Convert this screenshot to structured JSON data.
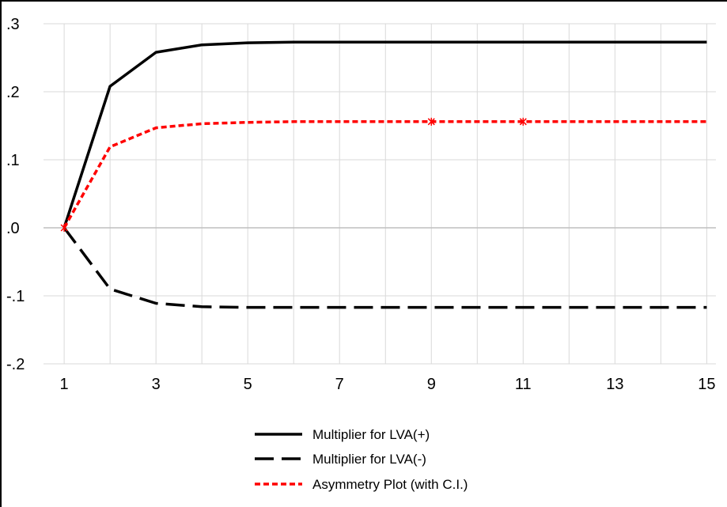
{
  "chart_data": {
    "type": "line",
    "x": [
      1,
      2,
      3,
      4,
      5,
      6,
      7,
      8,
      9,
      10,
      11,
      12,
      13,
      14,
      15
    ],
    "xticks": [
      "1",
      "3",
      "5",
      "7",
      "9",
      "11",
      "13",
      "15"
    ],
    "xtick_values": [
      1,
      3,
      5,
      7,
      9,
      11,
      13,
      15
    ],
    "xlim": [
      0.55,
      15.2
    ],
    "ylim": [
      -0.2,
      0.3
    ],
    "yticks": [
      ".3",
      ".2",
      ".1",
      ".0",
      "-.1",
      "-.2"
    ],
    "ytick_values": [
      0.3,
      0.2,
      0.1,
      0.0,
      -0.1,
      -0.2
    ],
    "grid": true,
    "legend_position": "bottom",
    "series": [
      {
        "name": "Multiplier for LVA(+)",
        "style": "solid",
        "color": "#000000",
        "values": [
          0.0,
          0.208,
          0.258,
          0.269,
          0.272,
          0.273,
          0.273,
          0.273,
          0.273,
          0.273,
          0.273,
          0.273,
          0.273,
          0.273,
          0.273
        ]
      },
      {
        "name": "Multiplier for LVA(-)",
        "style": "long-dash",
        "color": "#000000",
        "values": [
          0.0,
          -0.09,
          -0.111,
          -0.116,
          -0.117,
          -0.117,
          -0.117,
          -0.117,
          -0.117,
          -0.117,
          -0.117,
          -0.117,
          -0.117,
          -0.117,
          -0.117
        ]
      },
      {
        "name": "Asymmetry Plot (with C.I.)",
        "style": "short-dash",
        "color": "#ff0000",
        "values": [
          0.0,
          0.119,
          0.147,
          0.153,
          0.155,
          0.156,
          0.156,
          0.156,
          0.156,
          0.156,
          0.156,
          0.156,
          0.156,
          0.156,
          0.156
        ]
      }
    ]
  },
  "colors": {
    "grid": "#d9d9d9",
    "axis": "#000000",
    "red": "#ff0000"
  }
}
